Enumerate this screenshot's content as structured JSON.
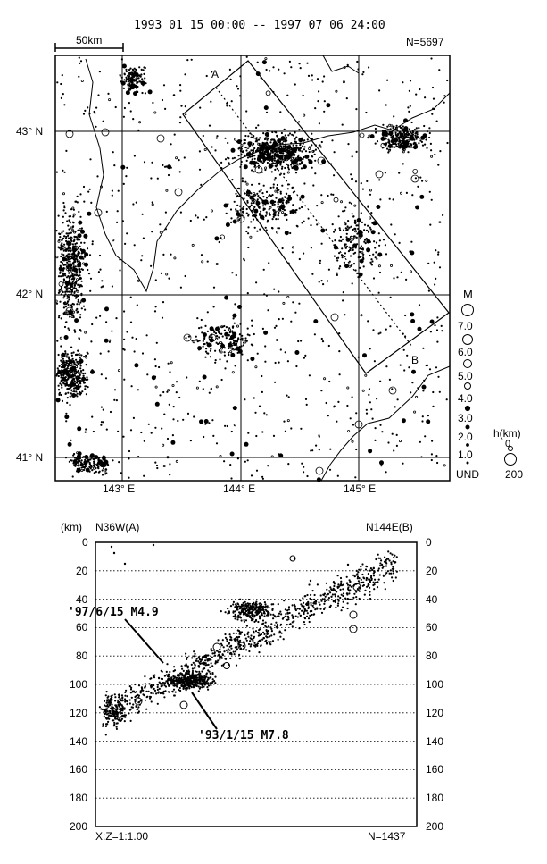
{
  "header": {
    "period": "1993 01 15 00:00 -- 1997 07 06 24:00",
    "scale_bar": "50km",
    "count": "N=5697"
  },
  "map": {
    "lat_labels": [
      "43° N",
      "42° N",
      "41° N"
    ],
    "lon_labels": [
      "143° E",
      "144° E",
      "145° E"
    ],
    "profile_labels": {
      "start": "A",
      "end": "B"
    }
  },
  "magnitude_legend": {
    "title": "M",
    "labels": [
      "7.0",
      "6.0",
      "5.0",
      "4.0",
      "3.0",
      "2.0",
      "1.0",
      "UND"
    ]
  },
  "depth_legend": {
    "title": "h(km)",
    "labels": [
      "0",
      "200"
    ]
  },
  "section": {
    "unit": "(km)",
    "left_direction": "N36W(A)",
    "right_direction": "N144E(B)",
    "depth_ticks": [
      "0",
      "20",
      "40",
      "60",
      "80",
      "100",
      "120",
      "140",
      "160",
      "180",
      "200"
    ],
    "annotation_1": "'97/6/15 M4.9",
    "annotation_2": "'93/1/15 M7.8",
    "ratio": "X:Z=1:1.00",
    "count": "N=1437"
  }
}
